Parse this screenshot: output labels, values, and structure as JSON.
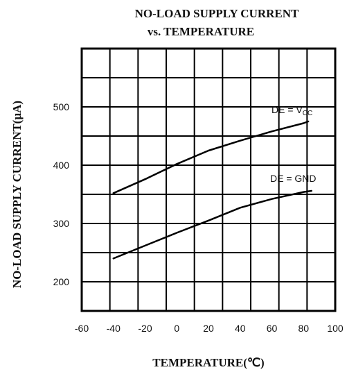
{
  "chart_data": {
    "type": "line",
    "title_line1": "NO-LOAD SUPPLY CURRENT",
    "title_line2": "vs. TEMPERATURE",
    "xlabel": "TEMPERATURE(℃)",
    "ylabel": "NO-LOAD SUPPLY CURRENT(µA)",
    "xlim": [
      -60,
      100
    ],
    "ylim": [
      150,
      600
    ],
    "xticks": [
      "-60",
      "-40",
      "-20",
      "0",
      "20",
      "40",
      "60",
      "80",
      "100"
    ],
    "yticks": [
      "200",
      "300",
      "400",
      "500"
    ],
    "grid": true,
    "series": [
      {
        "name": "DE = VCC",
        "label_main": "DE = V",
        "label_sub": "CC",
        "x": [
          -40,
          -20,
          0,
          20,
          40,
          60,
          80,
          83
        ],
        "y": [
          352,
          376,
          402,
          425,
          442,
          458,
          472,
          475
        ]
      },
      {
        "name": "DE = GND",
        "label_main": "DE = GND",
        "x": [
          -40,
          -20,
          0,
          20,
          40,
          60,
          80,
          85
        ],
        "y": [
          240,
          262,
          284,
          305,
          327,
          342,
          354,
          356
        ]
      }
    ]
  }
}
